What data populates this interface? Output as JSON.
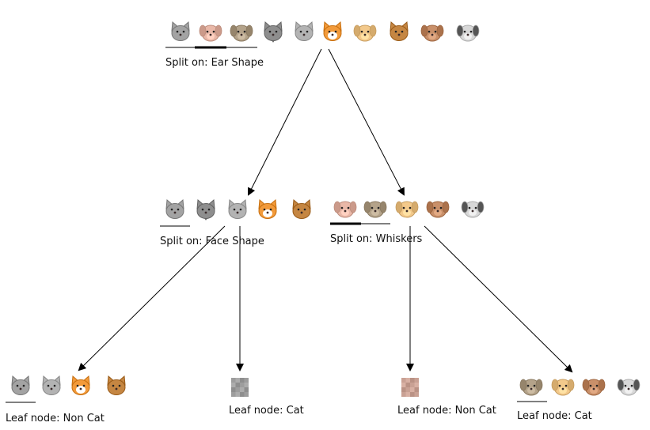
{
  "root": {
    "label": "Split on: Ear Shape",
    "animals": [
      "gray-cat",
      "pink-dog",
      "brown-dog",
      "wolf",
      "gray-cat-small",
      "orange-cat",
      "tan-dog",
      "brown-cat",
      "brown-dog-2",
      "bw-dog"
    ]
  },
  "left": {
    "label": "Split on: Face Shape",
    "animals": [
      "gray-cat",
      "wolf",
      "gray-cat-small",
      "orange-cat",
      "brown-cat"
    ]
  },
  "right": {
    "label": "Split on: Whiskers",
    "animals": [
      "pink-dog",
      "brown-dog",
      "tan-dog",
      "brown-dog-2",
      "bw-dog"
    ]
  },
  "leaves": [
    {
      "label": "Leaf node: Non Cat",
      "animals": [
        "gray-cat",
        "gray-cat-small",
        "orange-cat",
        "brown-cat"
      ]
    },
    {
      "label": "Leaf node: Cat",
      "animals": [
        "blurred-gray"
      ]
    },
    {
      "label": "Leaf node: Non Cat",
      "animals": [
        "blurred-pink"
      ]
    },
    {
      "label": "Leaf node: Cat",
      "animals": [
        "brown-dog",
        "tan-dog",
        "brown-dog-2",
        "bw-dog"
      ]
    }
  ],
  "colors": {
    "gray": "#9a9a9a",
    "orange": "#f29a3a",
    "tan": "#f3c98b",
    "brown": "#c58642",
    "pink": "#e9b8a8",
    "line": "#000000"
  }
}
